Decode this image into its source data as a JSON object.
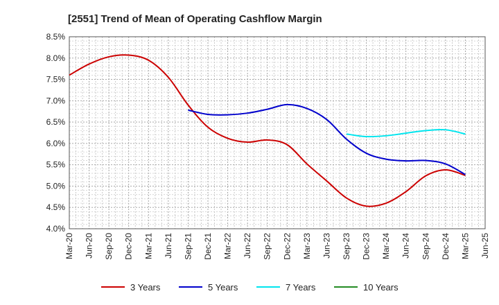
{
  "chart_data": {
    "type": "line",
    "title": "[2551]  Trend of Mean of Operating Cashflow Margin",
    "xlabel": "",
    "ylabel": "",
    "x_ticks": [
      "Mar-20",
      "Jun-20",
      "Sep-20",
      "Dec-20",
      "Mar-21",
      "Jun-21",
      "Sep-21",
      "Dec-21",
      "Mar-22",
      "Jun-22",
      "Sep-22",
      "Dec-22",
      "Mar-23",
      "Jun-23",
      "Sep-23",
      "Dec-23",
      "Mar-24",
      "Jun-24",
      "Sep-24",
      "Dec-24",
      "Mar-25",
      "Jun-25"
    ],
    "y_ticks": [
      "4.0%",
      "4.5%",
      "5.0%",
      "5.5%",
      "6.0%",
      "6.5%",
      "7.0%",
      "7.5%",
      "8.0%",
      "8.5%"
    ],
    "ylim": [
      4.0,
      8.5
    ],
    "grid": true,
    "legend_position": "bottom",
    "series": [
      {
        "name": "3 Years",
        "color": "#cc0000",
        "points": [
          [
            "Mar-20",
            7.6
          ],
          [
            "Jun-20",
            7.86
          ],
          [
            "Sep-20",
            8.03
          ],
          [
            "Dec-20",
            8.07
          ],
          [
            "Mar-21",
            7.95
          ],
          [
            "Jun-21",
            7.55
          ],
          [
            "Sep-21",
            6.9
          ],
          [
            "Dec-21",
            6.38
          ],
          [
            "Mar-22",
            6.12
          ],
          [
            "Jun-22",
            6.03
          ],
          [
            "Sep-22",
            6.08
          ],
          [
            "Dec-22",
            5.97
          ],
          [
            "Mar-23",
            5.52
          ],
          [
            "Jun-23",
            5.12
          ],
          [
            "Sep-23",
            4.72
          ],
          [
            "Dec-23",
            4.53
          ],
          [
            "Mar-24",
            4.6
          ],
          [
            "Jun-24",
            4.87
          ],
          [
            "Sep-24",
            5.24
          ],
          [
            "Dec-24",
            5.38
          ],
          [
            "Mar-25",
            5.25
          ]
        ]
      },
      {
        "name": "5 Years",
        "color": "#0000cc",
        "points": [
          [
            "Sep-21",
            6.78
          ],
          [
            "Dec-21",
            6.68
          ],
          [
            "Mar-22",
            6.67
          ],
          [
            "Jun-22",
            6.71
          ],
          [
            "Sep-22",
            6.8
          ],
          [
            "Dec-22",
            6.91
          ],
          [
            "Mar-23",
            6.82
          ],
          [
            "Jun-23",
            6.56
          ],
          [
            "Sep-23",
            6.1
          ],
          [
            "Dec-23",
            5.77
          ],
          [
            "Mar-24",
            5.63
          ],
          [
            "Jun-24",
            5.59
          ],
          [
            "Sep-24",
            5.6
          ],
          [
            "Dec-24",
            5.52
          ],
          [
            "Mar-25",
            5.27
          ]
        ]
      },
      {
        "name": "7 Years",
        "color": "#00e5ee",
        "points": [
          [
            "Sep-23",
            6.22
          ],
          [
            "Dec-23",
            6.16
          ],
          [
            "Mar-24",
            6.18
          ],
          [
            "Jun-24",
            6.24
          ],
          [
            "Sep-24",
            6.3
          ],
          [
            "Dec-24",
            6.32
          ],
          [
            "Mar-25",
            6.22
          ]
        ]
      },
      {
        "name": "10 Years",
        "color": "#228b22",
        "points": []
      }
    ]
  }
}
